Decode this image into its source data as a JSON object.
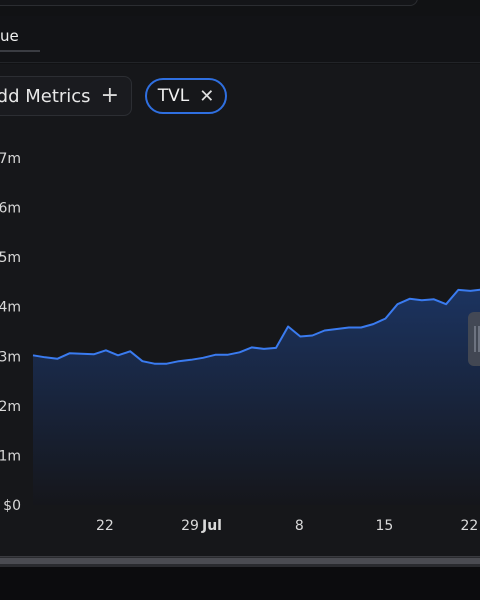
{
  "tab": {
    "active_label": "ue"
  },
  "toolbar": {
    "add_metrics_label": "dd Metrics",
    "add_icon": "+"
  },
  "chip": {
    "label": "TVL",
    "remove_icon": "✕"
  },
  "colors": {
    "accent": "#2f6fe0",
    "line": "#3a7bf0",
    "area_top": "#1c3564",
    "area_bottom": "#15161b"
  },
  "chart_data": {
    "type": "area",
    "title": "",
    "xlabel": "",
    "ylabel": "",
    "ylim": [
      0,
      7
    ],
    "y_ticks": [
      {
        "value": 7,
        "label": "7m"
      },
      {
        "value": 6,
        "label": "6m"
      },
      {
        "value": 5,
        "label": "5m"
      },
      {
        "value": 4,
        "label": "4m"
      },
      {
        "value": 3,
        "label": "3m"
      },
      {
        "value": 2,
        "label": "2m"
      },
      {
        "value": 1,
        "label": "1m"
      },
      {
        "value": 0,
        "label": "$0"
      }
    ],
    "x_ticks": [
      {
        "label": "22",
        "bold": false
      },
      {
        "label": "29",
        "bold": false
      },
      {
        "label": "Jul",
        "bold": true
      },
      {
        "label": "8",
        "bold": false
      },
      {
        "label": "15",
        "bold": false
      },
      {
        "label": "22",
        "bold": false
      }
    ],
    "x": [
      "Jun 16",
      "Jun 17",
      "Jun 18",
      "Jun 19",
      "Jun 20",
      "Jun 21",
      "Jun 22",
      "Jun 23",
      "Jun 24",
      "Jun 25",
      "Jun 26",
      "Jun 27",
      "Jun 28",
      "Jun 29",
      "Jun 30",
      "Jul 1",
      "Jul 2",
      "Jul 3",
      "Jul 4",
      "Jul 5",
      "Jul 6",
      "Jul 7",
      "Jul 8",
      "Jul 9",
      "Jul 10",
      "Jul 11",
      "Jul 12",
      "Jul 13",
      "Jul 14",
      "Jul 15",
      "Jul 16",
      "Jul 17",
      "Jul 18",
      "Jul 19",
      "Jul 20",
      "Jul 21",
      "Jul 22",
      "Jul 23"
    ],
    "series": [
      {
        "values": [
          3.02,
          2.98,
          2.95,
          3.06,
          3.05,
          3.04,
          3.12,
          3.02,
          3.1,
          2.9,
          2.85,
          2.85,
          2.9,
          2.93,
          2.97,
          3.03,
          3.03,
          3.08,
          3.18,
          3.15,
          3.17,
          3.6,
          3.4,
          3.42,
          3.52,
          3.55,
          3.58,
          3.58,
          3.65,
          3.76,
          4.05,
          4.16,
          4.13,
          4.15,
          4.05,
          4.34,
          4.32,
          4.35
        ]
      }
    ]
  }
}
